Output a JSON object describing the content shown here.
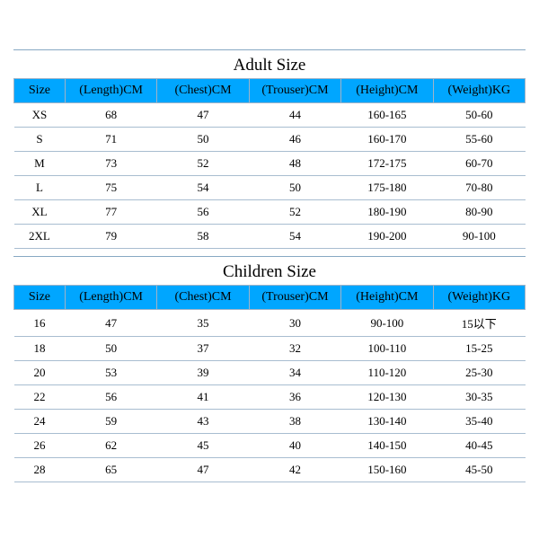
{
  "adultSection": {
    "title": "Adult Size",
    "columns": [
      "Size",
      "(Length)CM",
      "(Chest)CM",
      "(Trouser)CM",
      "(Height)CM",
      "(Weight)KG"
    ],
    "rows": [
      [
        "XS",
        "68",
        "47",
        "44",
        "160-165",
        "50-60"
      ],
      [
        "S",
        "71",
        "50",
        "46",
        "160-170",
        "55-60"
      ],
      [
        "M",
        "73",
        "52",
        "48",
        "172-175",
        "60-70"
      ],
      [
        "L",
        "75",
        "54",
        "50",
        "175-180",
        "70-80"
      ],
      [
        "XL",
        "77",
        "56",
        "52",
        "180-190",
        "80-90"
      ],
      [
        "2XL",
        "79",
        "58",
        "54",
        "190-200",
        "90-100"
      ]
    ]
  },
  "childrenSection": {
    "title": "Children Size",
    "columns": [
      "Size",
      "(Length)CM",
      "(Chest)CM",
      "(Trouser)CM",
      "(Height)CM",
      "(Weight)KG"
    ],
    "rows": [
      [
        "16",
        "47",
        "35",
        "30",
        "90-100",
        "15以下"
      ],
      [
        "18",
        "50",
        "37",
        "32",
        "100-110",
        "15-25"
      ],
      [
        "20",
        "53",
        "39",
        "34",
        "110-120",
        "25-30"
      ],
      [
        "22",
        "56",
        "41",
        "36",
        "120-130",
        "30-35"
      ],
      [
        "24",
        "59",
        "43",
        "38",
        "130-140",
        "35-40"
      ],
      [
        "26",
        "62",
        "45",
        "40",
        "140-150",
        "40-45"
      ],
      [
        "28",
        "65",
        "47",
        "42",
        "150-160",
        "45-50"
      ]
    ]
  },
  "style": {
    "header_bg": "#00a6ff",
    "border_color": "#9fb3c8",
    "row_border": "#a8bdd0",
    "title_fontsize": 19,
    "header_fontsize": 14,
    "cell_fontsize": 13
  }
}
